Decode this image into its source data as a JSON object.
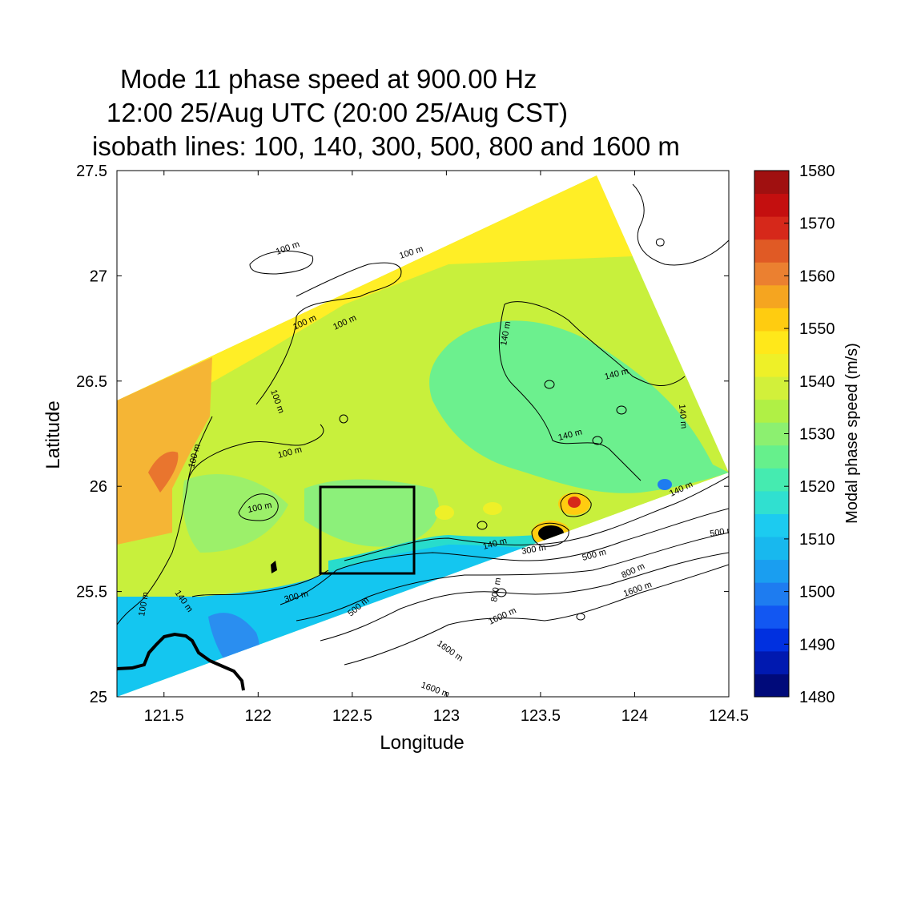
{
  "title": {
    "line1": "Mode 11 phase speed at 900.00 Hz",
    "line2": "12:00 25/Aug UTC (20:00 25/Aug CST)",
    "line3": "isobath lines: 100, 140, 300, 500, 800 and 1600 m"
  },
  "axes": {
    "xlabel": "Longitude",
    "ylabel": "Latitude",
    "xlim": [
      121.25,
      124.5
    ],
    "ylim": [
      25,
      27.5
    ],
    "xticks": [
      "121.5",
      "122",
      "122.5",
      "123",
      "123.5",
      "124",
      "124.5"
    ],
    "yticks": [
      "25",
      "25.5",
      "26",
      "26.5",
      "27",
      "27.5"
    ]
  },
  "colorbar": {
    "label": "Modal phase speed (m/s)",
    "range": [
      1480,
      1580
    ],
    "ticks": [
      "1480",
      "1490",
      "1500",
      "1510",
      "1520",
      "1530",
      "1540",
      "1550",
      "1560",
      "1570",
      "1580"
    ],
    "colors": [
      "#000a7a",
      "#0019b0",
      "#0030e0",
      "#1257f2",
      "#1e7cf0",
      "#1a9ef0",
      "#18b8ee",
      "#1ccbf0",
      "#30e0d0",
      "#45ebb0",
      "#66f08c",
      "#8cf070",
      "#b0f045",
      "#d2f03a",
      "#eef028",
      "#ffe81a",
      "#ffcc10",
      "#f5a520",
      "#eb8030",
      "#e05a25",
      "#d6281a",
      "#c40f0f",
      "#a01010"
    ]
  },
  "isobath_labels": [
    "100 m",
    "140 m",
    "300 m",
    "500 m",
    "800 m",
    "1600 m"
  ],
  "study_box": {
    "lon": [
      122.33,
      122.83
    ],
    "lat": [
      25.58,
      26.0
    ]
  },
  "colors": {
    "blue_shelf": "#12c8f0",
    "green_mid": "#c8f03c",
    "green_light": "#66f090",
    "yellow": "#ffee22",
    "orange": "#f5b030"
  }
}
